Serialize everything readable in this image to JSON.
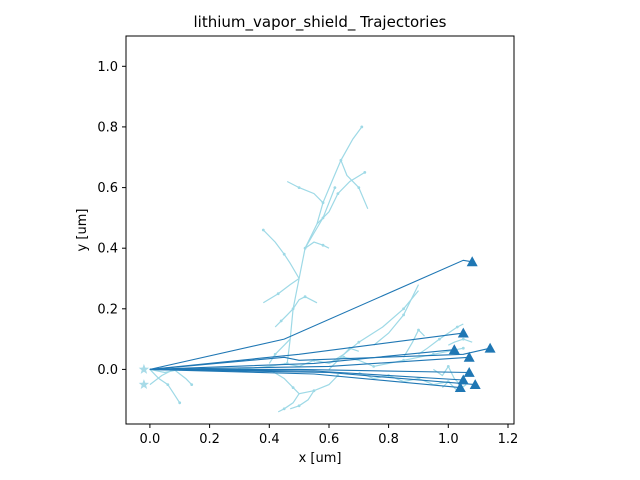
{
  "chart_data": {
    "type": "line",
    "title": "lithium_vapor_shield_ Trajectories",
    "xlabel": "x [um]",
    "ylabel": "y [um]",
    "xlim": [
      -0.08,
      1.22
    ],
    "ylim": [
      -0.18,
      1.1
    ],
    "xticks": [
      "0.0",
      "0.2",
      "0.4",
      "0.6",
      "0.8",
      "1.0",
      "1.2"
    ],
    "xtick_values": [
      0.0,
      0.2,
      0.4,
      0.6,
      0.8,
      1.0,
      1.2
    ],
    "yticks": [
      "0.0",
      "0.2",
      "0.4",
      "0.6",
      "0.8",
      "1.0"
    ],
    "ytick_values": [
      0.0,
      0.2,
      0.4,
      0.6,
      0.8,
      1.0
    ],
    "grid": false,
    "colors": {
      "light_trajectory": "#9ed9e6",
      "dark_trajectory": "#1f77b4",
      "end_marker": "#1f77b4",
      "start_marker": "#a8dbe8"
    },
    "start_markers": [
      {
        "x": -0.02,
        "y": 0.0
      },
      {
        "x": -0.02,
        "y": -0.05
      }
    ],
    "end_markers": [
      {
        "x": 1.08,
        "y": 0.355
      },
      {
        "x": 1.05,
        "y": 0.12
      },
      {
        "x": 1.14,
        "y": 0.07
      },
      {
        "x": 1.02,
        "y": 0.065
      },
      {
        "x": 1.07,
        "y": 0.04
      },
      {
        "x": 1.07,
        "y": -0.01
      },
      {
        "x": 1.05,
        "y": -0.035
      },
      {
        "x": 1.09,
        "y": -0.05
      },
      {
        "x": 1.04,
        "y": -0.06
      }
    ],
    "dark_series": [
      {
        "x": [
          0.0,
          0.45,
          1.05,
          1.08
        ],
        "y": [
          0.0,
          0.1,
          0.36,
          0.355
        ]
      },
      {
        "x": [
          0.0,
          0.5,
          1.05
        ],
        "y": [
          0.0,
          0.05,
          0.12
        ]
      },
      {
        "x": [
          0.0,
          0.45,
          0.5,
          1.05,
          1.14
        ],
        "y": [
          0.0,
          0.04,
          0.03,
          0.05,
          0.07
        ]
      },
      {
        "x": [
          0.0,
          0.55,
          1.02
        ],
        "y": [
          0.0,
          0.02,
          0.065
        ]
      },
      {
        "x": [
          0.0,
          0.6,
          1.07
        ],
        "y": [
          0.0,
          0.01,
          0.04
        ]
      },
      {
        "x": [
          0.0,
          0.5,
          1.07
        ],
        "y": [
          0.0,
          0.0,
          -0.01
        ]
      },
      {
        "x": [
          0.0,
          0.55,
          1.05
        ],
        "y": [
          0.0,
          -0.005,
          -0.035
        ]
      },
      {
        "x": [
          0.0,
          0.6,
          1.09
        ],
        "y": [
          0.0,
          -0.01,
          -0.05
        ]
      },
      {
        "x": [
          0.0,
          0.55,
          1.04
        ],
        "y": [
          0.0,
          -0.015,
          -0.06
        ]
      }
    ],
    "light_series": [
      {
        "x": [
          0.0,
          0.05,
          0.1,
          0.2,
          0.3,
          0.4,
          0.46,
          0.47,
          0.48,
          0.5,
          0.52,
          0.56,
          0.58,
          0.61,
          0.64,
          0.68,
          0.71
        ],
        "y": [
          0.0,
          -0.01,
          0.0,
          0.0,
          0.0,
          0.01,
          0.02,
          0.1,
          0.2,
          0.3,
          0.4,
          0.48,
          0.55,
          0.62,
          0.69,
          0.76,
          0.8
        ]
      },
      {
        "x": [
          0.5,
          0.47,
          0.45,
          0.42,
          0.38
        ],
        "y": [
          0.3,
          0.35,
          0.38,
          0.42,
          0.46
        ]
      },
      {
        "x": [
          0.52,
          0.55,
          0.58,
          0.6,
          0.62
        ],
        "y": [
          0.4,
          0.45,
          0.5,
          0.55,
          0.6
        ]
      },
      {
        "x": [
          0.56,
          0.6,
          0.63,
          0.67,
          0.72
        ],
        "y": [
          0.48,
          0.52,
          0.58,
          0.62,
          0.65
        ]
      },
      {
        "x": [
          0.64,
          0.66,
          0.7,
          0.73
        ],
        "y": [
          0.69,
          0.64,
          0.6,
          0.53
        ]
      },
      {
        "x": [
          0.58,
          0.55,
          0.5,
          0.46
        ],
        "y": [
          0.55,
          0.58,
          0.6,
          0.62
        ]
      },
      {
        "x": [
          0.5,
          0.47,
          0.43,
          0.38
        ],
        "y": [
          0.3,
          0.28,
          0.25,
          0.22
        ]
      },
      {
        "x": [
          0.52,
          0.55,
          0.58,
          0.6
        ],
        "y": [
          0.4,
          0.42,
          0.41,
          0.4
        ]
      },
      {
        "x": [
          0.48,
          0.46,
          0.44,
          0.42
        ],
        "y": [
          0.2,
          0.18,
          0.16,
          0.14
        ]
      },
      {
        "x": [
          0.48,
          0.5,
          0.52,
          0.56
        ],
        "y": [
          0.2,
          0.23,
          0.24,
          0.22
        ]
      },
      {
        "x": [
          0.47,
          0.45,
          0.42,
          0.4
        ],
        "y": [
          0.1,
          0.08,
          0.05,
          0.02
        ]
      },
      {
        "x": [
          0.0,
          0.03,
          0.06,
          0.08,
          0.1
        ],
        "y": [
          0.0,
          -0.03,
          -0.05,
          -0.08,
          -0.11
        ]
      },
      {
        "x": [
          0.0,
          0.04,
          0.08,
          0.12,
          0.14
        ],
        "y": [
          -0.05,
          -0.02,
          0.0,
          -0.03,
          -0.05
        ]
      },
      {
        "x": [
          0.4,
          0.45,
          0.48,
          0.5,
          0.55,
          0.6,
          0.63
        ],
        "y": [
          0.0,
          -0.03,
          -0.06,
          -0.08,
          -0.07,
          -0.05,
          -0.02
        ]
      },
      {
        "x": [
          0.5,
          0.48,
          0.45,
          0.43
        ],
        "y": [
          -0.08,
          -0.11,
          -0.13,
          -0.14
        ]
      },
      {
        "x": [
          0.55,
          0.53,
          0.5,
          0.47
        ],
        "y": [
          -0.07,
          -0.1,
          -0.12,
          -0.13
        ]
      },
      {
        "x": [
          0.45,
          0.5,
          0.55,
          0.6,
          0.65,
          0.7,
          0.75,
          0.8,
          0.85,
          0.9,
          0.95,
          1.0,
          1.05
        ],
        "y": [
          0.02,
          0.01,
          0.03,
          0.02,
          0.04,
          0.03,
          0.01,
          0.02,
          0.03,
          0.04,
          0.05,
          0.06,
          0.07
        ]
      },
      {
        "x": [
          0.6,
          0.65,
          0.7,
          0.78,
          0.85,
          0.9
        ],
        "y": [
          0.02,
          0.05,
          0.09,
          0.14,
          0.2,
          0.26
        ]
      },
      {
        "x": [
          0.75,
          0.8,
          0.85,
          0.9
        ],
        "y": [
          0.08,
          0.12,
          0.18,
          0.28
        ]
      },
      {
        "x": [
          0.9,
          0.93,
          0.97,
          1.0,
          1.03,
          1.05
        ],
        "y": [
          0.05,
          0.07,
          0.1,
          0.12,
          0.14,
          0.15
        ]
      },
      {
        "x": [
          0.85,
          0.88,
          0.9,
          0.92
        ],
        "y": [
          0.04,
          0.09,
          0.13,
          0.11
        ]
      },
      {
        "x": [
          0.6,
          0.64,
          0.67,
          0.7
        ],
        "y": [
          0.0,
          0.04,
          0.07,
          0.06
        ]
      },
      {
        "x": [
          0.95,
          0.98,
          1.0,
          1.02,
          1.04
        ],
        "y": [
          0.0,
          -0.02,
          0.01,
          -0.03,
          -0.05
        ]
      },
      {
        "x": [
          0.7,
          0.75,
          0.8,
          0.85,
          0.9,
          0.95,
          1.0
        ],
        "y": [
          -0.01,
          -0.03,
          -0.02,
          -0.04,
          -0.03,
          -0.05,
          -0.04
        ]
      },
      {
        "x": [
          1.0,
          1.02,
          1.05,
          1.08
        ],
        "y": [
          0.08,
          0.09,
          0.1,
          0.09
        ]
      },
      {
        "x": [
          0.98,
          1.0,
          1.03,
          1.06
        ],
        "y": [
          -0.06,
          -0.04,
          -0.07,
          -0.05
        ]
      }
    ]
  }
}
